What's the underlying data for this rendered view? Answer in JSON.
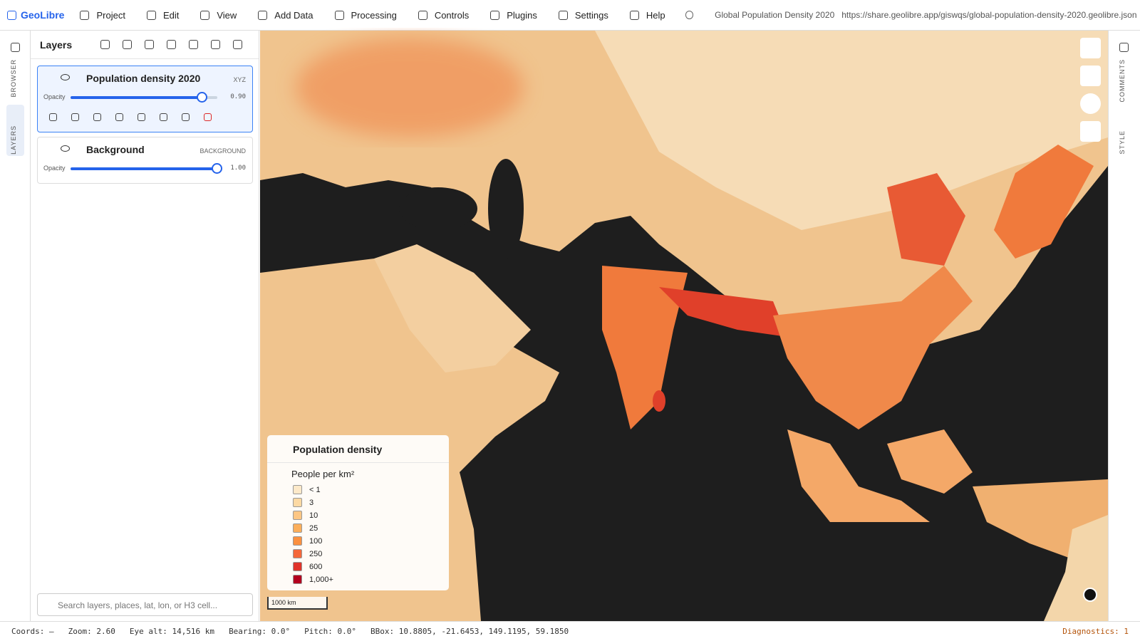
{
  "app": {
    "brand": "GeoLibre",
    "menu": [
      "Project",
      "Edit",
      "View",
      "Add Data",
      "Processing",
      "Controls",
      "Plugins",
      "Settings",
      "Help"
    ],
    "project_title": "Global Population Density 2020",
    "url": "https://share.geolibre.app/giswqs/global-population-density-2020.geolibre.json"
  },
  "sidebar": {
    "left_tabs": [
      "BROWSER",
      "LAYERS"
    ],
    "right_tabs": [
      "COMMENTS",
      "STYLE"
    ]
  },
  "layers_panel": {
    "title": "Layers",
    "layers": [
      {
        "name": "Population density 2020",
        "kind": "XYZ",
        "opacity_label": "Opacity",
        "opacity": {
          "value": 0.9,
          "label": "0.90"
        }
      },
      {
        "name": "Background",
        "kind": "BACKGROUND",
        "opacity_label": "Opacity",
        "opacity": {
          "value": 1.0,
          "label": "1.00"
        }
      }
    ],
    "search_placeholder": "Search layers, places, lat, lon, or H3 cell..."
  },
  "legend": {
    "title": "Population density",
    "subtitle": "People per km²",
    "items": [
      {
        "label": "< 1",
        "color": "#fde9c9"
      },
      {
        "label": "3",
        "color": "#fcd9a3"
      },
      {
        "label": "10",
        "color": "#fdc683"
      },
      {
        "label": "25",
        "color": "#fcae5a"
      },
      {
        "label": "100",
        "color": "#fb9040"
      },
      {
        "label": "250",
        "color": "#f4673a"
      },
      {
        "label": "600",
        "color": "#e0332a"
      },
      {
        "label": "1,000+",
        "color": "#b3001f"
      }
    ]
  },
  "map": {
    "scale_label": "1000 km"
  },
  "status": {
    "items": [
      "Coords: —",
      "Zoom: 2.60",
      "Eye alt: 14,516 km",
      "Bearing: 0.0°",
      "Pitch: 0.0°",
      "BBox: 10.8805, -21.6453, 149.1195, 59.1850"
    ],
    "diagnostics": "Diagnostics: 1"
  }
}
